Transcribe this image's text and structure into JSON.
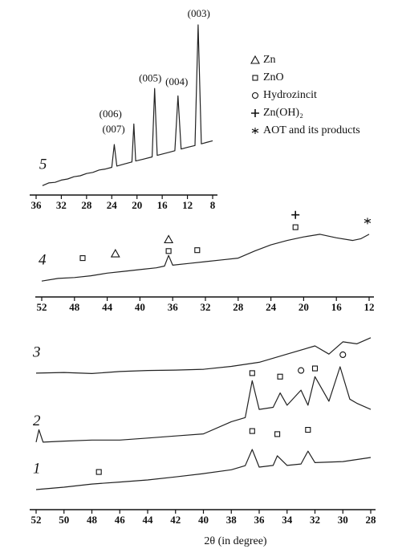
{
  "chart_data": [
    {
      "type": "line",
      "xlim": [
        36,
        8
      ],
      "xticks": [
        36,
        32,
        28,
        24,
        20,
        16,
        12,
        8
      ],
      "ylim": [
        0,
        100
      ],
      "series": [
        {
          "name": "5",
          "color": "#222222",
          "x": [
            35,
            34,
            33,
            32,
            31,
            30,
            29,
            28,
            27,
            26,
            25,
            24,
            23.6,
            23.2,
            22,
            21,
            20.8,
            20.5,
            20.2,
            19,
            17.6,
            17.2,
            16.8,
            15,
            14,
            13.5,
            13,
            12,
            10.8,
            10.3,
            9.8,
            9,
            8
          ],
          "values": [
            5,
            6.5,
            6.8,
            8,
            8.6,
            9.8,
            10.3,
            11.5,
            12.1,
            13.4,
            13.9,
            14.8,
            27,
            15.5,
            16.6,
            17.5,
            17.7,
            38,
            18.2,
            19.2,
            20.4,
            57,
            21.2,
            22.8,
            23.7,
            53,
            24.6,
            25.5,
            26.5,
            91,
            27.4,
            28.1,
            29
          ]
        }
      ],
      "annotations": [
        {
          "text": "(007)",
          "x": 23.7,
          "y": 34.8
        },
        {
          "text": "(006)",
          "x": 24.2,
          "y": 42.9
        },
        {
          "text": "(005)",
          "x": 17.9,
          "y": 62
        },
        {
          "text": "(004)",
          "x": 13.7,
          "y": 60
        },
        {
          "text": "(003)",
          "x": 10.2,
          "y": 96.6
        }
      ],
      "legend": [
        {
          "symbol": "triangle",
          "label": "Zn"
        },
        {
          "symbol": "square",
          "label": "ZnO"
        },
        {
          "symbol": "circle",
          "label": "Hydrozincit"
        },
        {
          "symbol": "plus",
          "label": "Zn(OH)₂"
        },
        {
          "symbol": "star",
          "label": "AOT and its products"
        }
      ]
    },
    {
      "type": "line",
      "xlim": [
        52,
        12
      ],
      "xticks": [
        52,
        48,
        44,
        40,
        36,
        32,
        28,
        24,
        20,
        16,
        12
      ],
      "ylim": [
        0,
        100
      ],
      "series": [
        {
          "name": "4",
          "color": "#222222",
          "x": [
            52,
            50,
            48,
            46,
            44,
            42,
            40,
            38,
            37,
            36.5,
            36,
            34,
            32,
            30,
            28,
            26,
            24,
            22,
            20,
            18,
            16,
            14,
            13,
            12
          ],
          "values": [
            18,
            21,
            22,
            24,
            27,
            29,
            31,
            33,
            35,
            47,
            36,
            38,
            40,
            42,
            44,
            52,
            59,
            64,
            68,
            71,
            67,
            64,
            66,
            71
          ]
        }
      ],
      "markers": [
        {
          "symbol": "square",
          "x": 47,
          "y": 44
        },
        {
          "symbol": "triangle",
          "x": 43,
          "y": 49
        },
        {
          "symbol": "triangle",
          "x": 36.5,
          "y": 65
        },
        {
          "symbol": "square",
          "x": 36.5,
          "y": 52
        },
        {
          "symbol": "square",
          "x": 33,
          "y": 53
        },
        {
          "symbol": "plus",
          "x": 21,
          "y": 93
        },
        {
          "symbol": "square",
          "x": 21,
          "y": 79
        },
        {
          "symbol": "star",
          "x": 12.2,
          "y": 86
        }
      ]
    },
    {
      "type": "line",
      "xlim": [
        52,
        28
      ],
      "xticks": [
        52,
        50,
        48,
        46,
        44,
        42,
        40,
        38,
        36,
        34,
        32,
        30,
        28
      ],
      "ylim": [
        0,
        100
      ],
      "xlabel": "2θ (in degree)",
      "series": [
        {
          "name": "3",
          "color": "#222222",
          "x": [
            52,
            50,
            48,
            46,
            44,
            42,
            40,
            38,
            36,
            34,
            32,
            31,
            30,
            29,
            28
          ],
          "values": [
            66.7,
            67,
            66.5,
            67.5,
            68,
            68.2,
            68.6,
            70,
            72,
            76,
            80,
            76,
            82,
            81,
            84
          ]
        },
        {
          "name": "2",
          "color": "#222222",
          "x": [
            52,
            51.8,
            51.5,
            50,
            48,
            46,
            44,
            42,
            40,
            38,
            37,
            36.5,
            36,
            35,
            34.5,
            34,
            33,
            32.5,
            32,
            31,
            30.2,
            29.5,
            29,
            28
          ],
          "values": [
            33,
            39,
            33,
            33.5,
            34,
            34,
            35,
            36,
            37,
            43,
            45,
            63,
            49,
            50,
            57,
            51,
            58.4,
            51,
            65,
            53,
            69.8,
            54,
            52,
            49
          ]
        },
        {
          "name": "1",
          "color": "#222222",
          "x": [
            52,
            50,
            48,
            46,
            44,
            42,
            40,
            38,
            37,
            36.5,
            36,
            35,
            34.7,
            34,
            33,
            32.5,
            32,
            30,
            28
          ],
          "values": [
            9.8,
            11,
            12.5,
            13.5,
            14.5,
            16,
            17.6,
            19.5,
            21.5,
            29.4,
            20.8,
            21.6,
            26.3,
            21.6,
            22.3,
            28.6,
            23,
            23.5,
            25.5
          ]
        }
      ],
      "markers": [
        {
          "symbol": "square",
          "x": 36.5,
          "y": 66.7
        },
        {
          "symbol": "square",
          "x": 34.5,
          "y": 65
        },
        {
          "symbol": "circle",
          "x": 33,
          "y": 68
        },
        {
          "symbol": "square",
          "x": 32,
          "y": 69
        },
        {
          "symbol": "circle",
          "x": 30,
          "y": 75.7
        },
        {
          "symbol": "square",
          "x": 47.5,
          "y": 18.4
        },
        {
          "symbol": "square",
          "x": 36.5,
          "y": 38.4
        },
        {
          "symbol": "square",
          "x": 34.7,
          "y": 36.9
        },
        {
          "symbol": "square",
          "x": 32.5,
          "y": 39
        }
      ]
    }
  ]
}
